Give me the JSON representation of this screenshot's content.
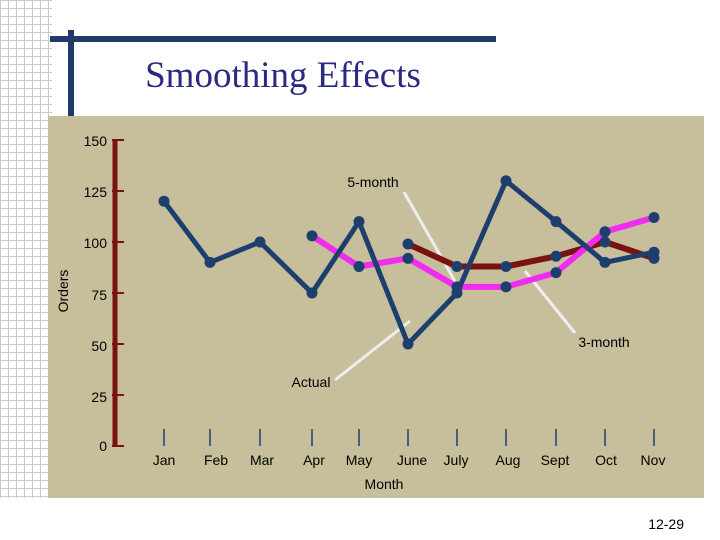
{
  "slide": {
    "title": "Smoothing Effects",
    "page_number": "12-29"
  },
  "colors": {
    "actual": "#1d3f6e",
    "three_month": "#ef2cf0",
    "five_month": "#7a1212",
    "callout": "#eeeeee",
    "panel": "#c7bf9c"
  },
  "chart_data": {
    "type": "line",
    "xlabel": "Month",
    "ylabel": "Orders",
    "ylim": [
      0,
      150
    ],
    "yticks": [
      0,
      25,
      50,
      75,
      100,
      125,
      150
    ],
    "categories": [
      "Jan",
      "Feb",
      "Mar",
      "Apr",
      "May",
      "June",
      "July",
      "Aug",
      "Sept",
      "Oct",
      "Nov"
    ],
    "series": [
      {
        "name": "Actual",
        "values": [
          120,
          90,
          100,
          75,
          110,
          50,
          75,
          130,
          110,
          90,
          95
        ]
      },
      {
        "name": "3-month",
        "values": [
          null,
          null,
          null,
          103,
          88,
          92,
          78,
          78,
          85,
          105,
          112
        ]
      },
      {
        "name": "5-month",
        "values": [
          null,
          null,
          null,
          null,
          null,
          99,
          88,
          88,
          93,
          100,
          92
        ]
      }
    ],
    "annotations": [
      {
        "text": "5-month"
      },
      {
        "text": "3-month"
      },
      {
        "text": "Actual"
      }
    ]
  }
}
